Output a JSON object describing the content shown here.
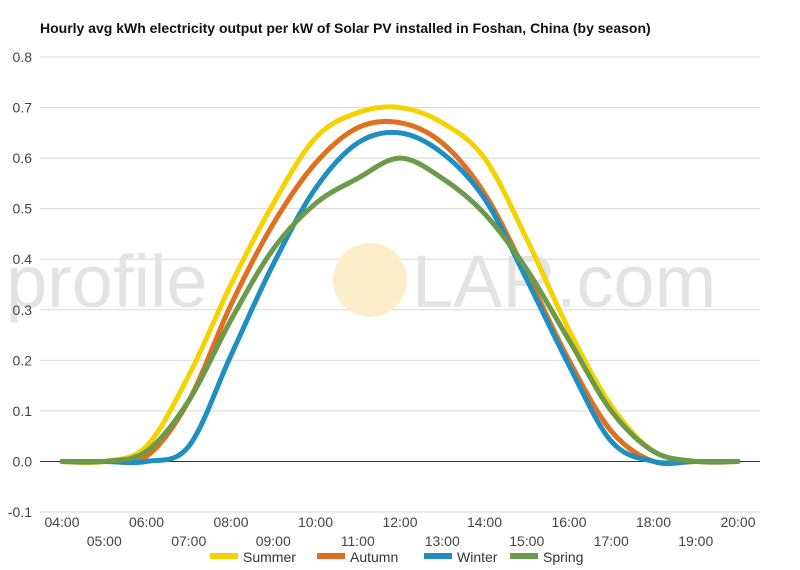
{
  "chart_data": {
    "type": "line",
    "title": "Hourly avg kWh electricity output per kW of Solar PV installed in Foshan, China (by season)",
    "xlabel": "",
    "ylabel": "",
    "x": [
      "04:00",
      "05:00",
      "06:00",
      "07:00",
      "08:00",
      "09:00",
      "10:00",
      "11:00",
      "12:00",
      "13:00",
      "14:00",
      "15:00",
      "16:00",
      "17:00",
      "18:00",
      "19:00",
      "20:00"
    ],
    "ylim": [
      -0.1,
      0.8
    ],
    "yticks": [
      "0.8",
      "0.7",
      "0.6",
      "0.5",
      "0.4",
      "0.3",
      "0.2",
      "0.1",
      "0.0",
      "-0.1"
    ],
    "grid": true,
    "legend_position": "bottom",
    "watermark": {
      "left": "profile",
      "right": "LAR.com"
    },
    "series": [
      {
        "name": "Summer",
        "color": "#f4d300",
        "values": [
          0.0,
          0.0,
          0.03,
          0.17,
          0.35,
          0.51,
          0.64,
          0.69,
          0.7,
          0.67,
          0.6,
          0.44,
          0.26,
          0.11,
          0.02,
          0.0,
          0.0
        ]
      },
      {
        "name": "Autumn",
        "color": "#e07020",
        "values": [
          0.0,
          0.0,
          0.01,
          0.12,
          0.31,
          0.47,
          0.59,
          0.66,
          0.67,
          0.63,
          0.53,
          0.37,
          0.2,
          0.06,
          0.0,
          0.0,
          0.0
        ]
      },
      {
        "name": "Winter",
        "color": "#1e8fc0",
        "values": [
          0.0,
          0.0,
          0.0,
          0.03,
          0.21,
          0.39,
          0.54,
          0.63,
          0.65,
          0.61,
          0.52,
          0.36,
          0.19,
          0.04,
          0.0,
          0.0,
          0.0
        ]
      },
      {
        "name": "Spring",
        "color": "#6a9a4a",
        "values": [
          0.0,
          0.0,
          0.02,
          0.12,
          0.28,
          0.42,
          0.51,
          0.56,
          0.6,
          0.56,
          0.49,
          0.38,
          0.24,
          0.1,
          0.02,
          0.0,
          0.0
        ]
      }
    ]
  }
}
